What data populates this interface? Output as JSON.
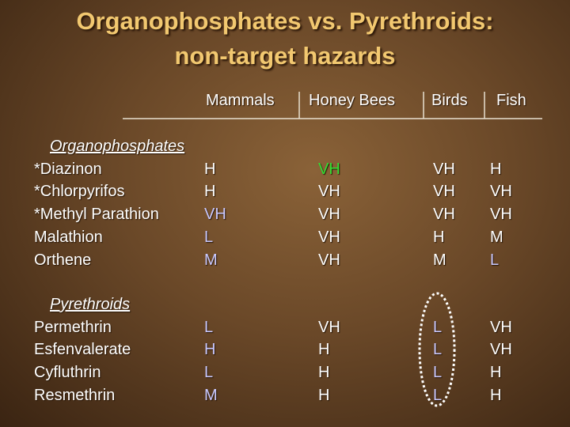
{
  "title": {
    "lines": [
      "Organophosphates vs. Pyrethroids:",
      "non-target hazards"
    ]
  },
  "header": {
    "columns": [
      "Mammals",
      "Honey Bees",
      "Birds",
      "Fish"
    ]
  },
  "groups": [
    {
      "label": "Organophosphates",
      "rows": [
        {
          "name": "*Diazinon",
          "cells": [
            {
              "text": "H",
              "color": "#ffffff"
            },
            {
              "text": "VH",
              "color": "#33dd33"
            },
            {
              "text": "VH",
              "color": "#ffffff"
            },
            {
              "text": "H",
              "color": "#ffffff"
            }
          ]
        },
        {
          "name": "*Chlorpyrifos",
          "cells": [
            {
              "text": "H",
              "color": "#ffffff"
            },
            {
              "text": "VH",
              "color": "#ffffff"
            },
            {
              "text": "VH",
              "color": "#ffffff"
            },
            {
              "text": "VH",
              "color": "#ffffff"
            }
          ]
        },
        {
          "name": "*Methyl Parathion",
          "cells": [
            {
              "text": "VH",
              "color": "#c8c8ff"
            },
            {
              "text": "VH",
              "color": "#ffffff"
            },
            {
              "text": "VH",
              "color": "#ffffff"
            },
            {
              "text": "VH",
              "color": "#ffffff"
            }
          ]
        },
        {
          "name": "Malathion",
          "cells": [
            {
              "text": "L",
              "color": "#c8c8ff"
            },
            {
              "text": "VH",
              "color": "#ffffff"
            },
            {
              "text": "H",
              "color": "#ffffff"
            },
            {
              "text": "M",
              "color": "#ffffff"
            }
          ]
        },
        {
          "name": "Orthene",
          "cells": [
            {
              "text": "M",
              "color": "#c8c8ff"
            },
            {
              "text": "VH",
              "color": "#ffffff"
            },
            {
              "text": "M",
              "color": "#ffffff"
            },
            {
              "text": "L",
              "color": "#c8c8ff"
            }
          ]
        }
      ]
    },
    {
      "label": "Pyrethroids",
      "rows": [
        {
          "name": "Permethrin",
          "cells": [
            {
              "text": "L",
              "color": "#c8c8ff"
            },
            {
              "text": "VH",
              "color": "#ffffff"
            },
            {
              "text": "L",
              "color": "#c8c8ff"
            },
            {
              "text": "VH",
              "color": "#ffffff"
            }
          ]
        },
        {
          "name": "Esfenvalerate",
          "cells": [
            {
              "text": "H",
              "color": "#c8c8ff"
            },
            {
              "text": "H",
              "color": "#ffffff"
            },
            {
              "text": "L",
              "color": "#c8c8ff"
            },
            {
              "text": "VH",
              "color": "#ffffff"
            }
          ]
        },
        {
          "name": "Cyfluthrin",
          "cells": [
            {
              "text": "L",
              "color": "#c8c8ff"
            },
            {
              "text": "H",
              "color": "#ffffff"
            },
            {
              "text": "L",
              "color": "#c8c8ff"
            },
            {
              "text": "H",
              "color": "#ffffff"
            }
          ]
        },
        {
          "name": "Resmethrin",
          "cells": [
            {
              "text": "M",
              "color": "#c8c8ff"
            },
            {
              "text": "H",
              "color": "#ffffff"
            },
            {
              "text": "L",
              "color": "#c8c8ff"
            },
            {
              "text": "H",
              "color": "#ffffff"
            }
          ]
        }
      ]
    }
  ]
}
